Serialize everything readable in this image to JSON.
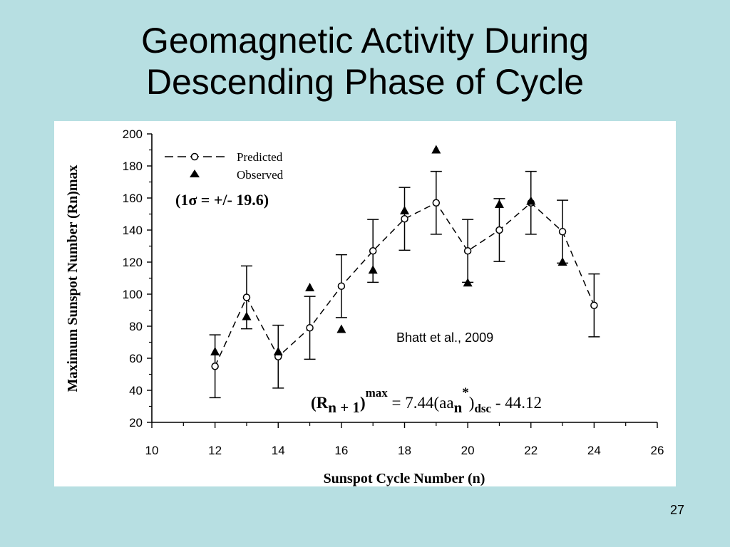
{
  "slide": {
    "title_line1": "Geomagnetic Activity During",
    "title_line2": "Descending Phase of Cycle",
    "page_number": "27",
    "background_color": "#b7dfe2"
  },
  "chart_data": {
    "type": "line",
    "xlabel": "Sunspot Cycle Number (n)",
    "ylabel": "Maximum Sunspot Number (Rn)max",
    "xlim": [
      10,
      26
    ],
    "ylim": [
      20,
      200
    ],
    "x_ticks": [
      10,
      12,
      14,
      16,
      18,
      20,
      22,
      24,
      26
    ],
    "y_ticks": [
      20,
      40,
      60,
      80,
      100,
      120,
      140,
      160,
      180,
      200
    ],
    "grid": false,
    "legend_position": "top-left",
    "legend": {
      "predicted_label": "Predicted",
      "observed_label": "Observed",
      "sigma_note": "(1σ = +/- 19.6)"
    },
    "annotation_citation": "Bhatt et al., 2009",
    "equation": {
      "part1": "(R",
      "part2": "n + 1",
      "part3": ")",
      "sup1": "max",
      "part4": " = 7.44(aa",
      "part5": "n",
      "sup2": "*",
      "part6": ")",
      "part7": "dsc",
      "part8": " - 44.12"
    },
    "series": [
      {
        "name": "Predicted",
        "style": "dashed line with open circles and error bars",
        "x": [
          12,
          13,
          14,
          15,
          16,
          17,
          18,
          19,
          20,
          21,
          22,
          23,
          24
        ],
        "y": [
          55,
          98,
          61,
          79,
          105,
          127,
          147,
          157,
          127,
          140,
          157,
          139,
          93
        ],
        "error": [
          19.6,
          19.6,
          19.6,
          19.6,
          19.6,
          19.6,
          19.6,
          19.6,
          19.6,
          19.6,
          19.6,
          19.6,
          19.6
        ]
      },
      {
        "name": "Observed",
        "style": "filled triangles",
        "x": [
          12,
          13,
          14,
          15,
          16,
          17,
          18,
          19,
          20,
          21,
          22,
          23
        ],
        "y": [
          64,
          86,
          64,
          104,
          78,
          115,
          152,
          190,
          107,
          156,
          158,
          120
        ]
      }
    ]
  }
}
